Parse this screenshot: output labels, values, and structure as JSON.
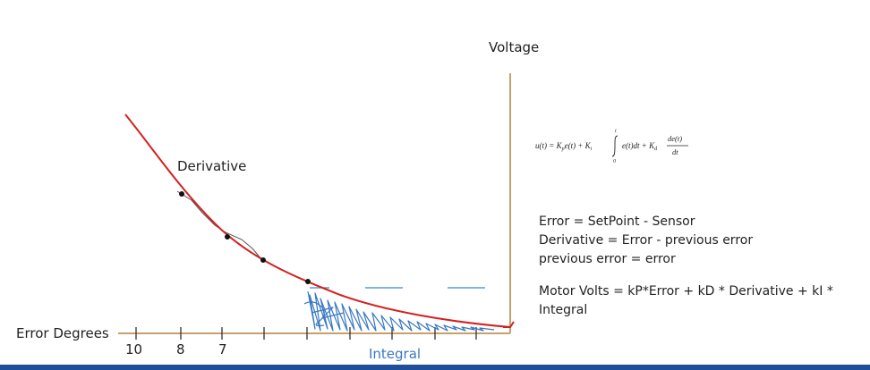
{
  "labels": {
    "voltage": "Voltage",
    "derivative": "Derivative",
    "integral": "Integral",
    "error_degrees": "Error Degrees"
  },
  "ticks": [
    "10",
    "8",
    "7"
  ],
  "formula": {
    "lhs": "u(t) = K",
    "p_sub": "p",
    "term1": "e(t) + K",
    "i_sub": "i",
    "upper": "t",
    "lower": "0",
    "integrand": "e(t)dt + K",
    "d_sub": "d",
    "numer": "de(t)",
    "denom": "dt"
  },
  "equations": [
    "Error = SetPoint - Sensor",
    "Derivative = Error - previous error",
    "previous error = error"
  ],
  "motor_volts": "Motor Volts = kP*Error + kD * Derivative + kI * Integral",
  "colors": {
    "curve": "#d42020",
    "axis": "#c9a06b",
    "ink": "#222222",
    "scribble": "#3a78c0",
    "dash": "#5b9bd5",
    "bottom_bar": "#1f4f9b"
  }
}
